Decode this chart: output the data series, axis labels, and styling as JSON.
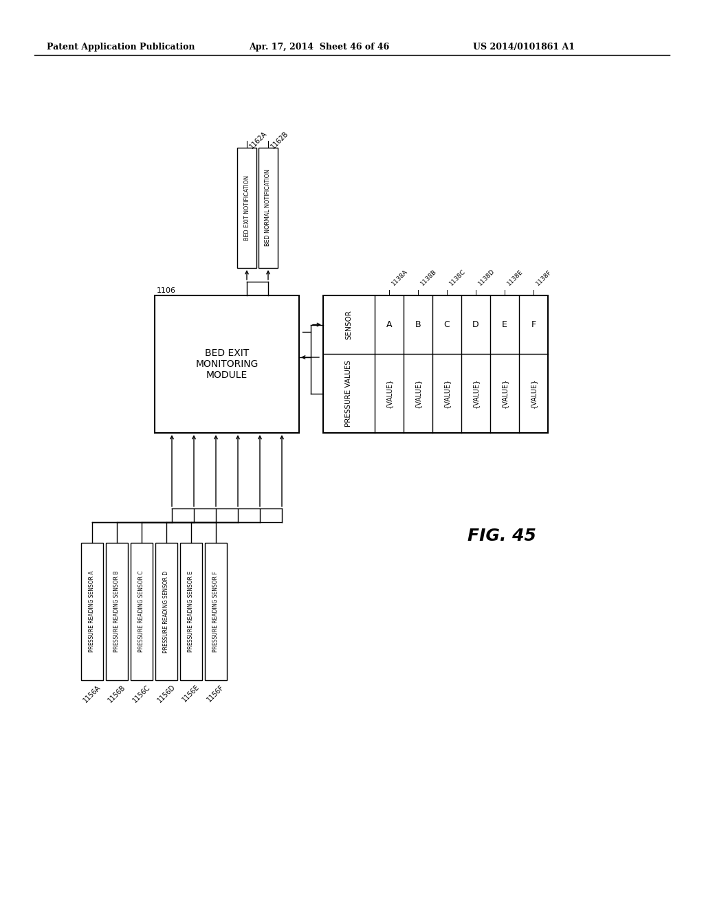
{
  "title_left": "Patent Application Publication",
  "title_center": "Apr. 17, 2014  Sheet 46 of 46",
  "title_right": "US 2014/0101861 A1",
  "fig_label": "FIG. 45",
  "background_color": "#ffffff",
  "sensor_boxes": [
    {
      "label": "PRESSURE READING SENSOR A",
      "ref": "1156A"
    },
    {
      "label": "PRESSURE READING SENSOR B",
      "ref": "1156B"
    },
    {
      "label": "PRESSURE READING SENSOR C",
      "ref": "1156C"
    },
    {
      "label": "PRESSURE READING SENSOR D",
      "ref": "1156D"
    },
    {
      "label": "PRESSURE READING SENSOR E",
      "ref": "1156E"
    },
    {
      "label": "PRESSURE READING SENSOR F",
      "ref": "1156F"
    }
  ],
  "monitor_box_label": "BED EXIT\nMONITORING\nMODULE",
  "monitor_box_ref": "1106",
  "output_boxes": [
    {
      "label": "BED EXIT NOTIFICATION",
      "ref": "1162A"
    },
    {
      "label": "BED NORMAL NOTIFICATION",
      "ref": "1162B"
    }
  ],
  "table_sensors": [
    "A",
    "B",
    "C",
    "D",
    "E",
    "F"
  ],
  "table_values": [
    "{VALUE}",
    "{VALUE}",
    "{VALUE}",
    "{VALUE}",
    "{VALUE}",
    "{VALUE}"
  ],
  "table_row_labels": [
    "SENSOR",
    "PRESSURE VALUES"
  ],
  "table_col_refs": [
    "1138A",
    "1138B",
    "1138C",
    "1138D",
    "1138E",
    "1138F"
  ]
}
